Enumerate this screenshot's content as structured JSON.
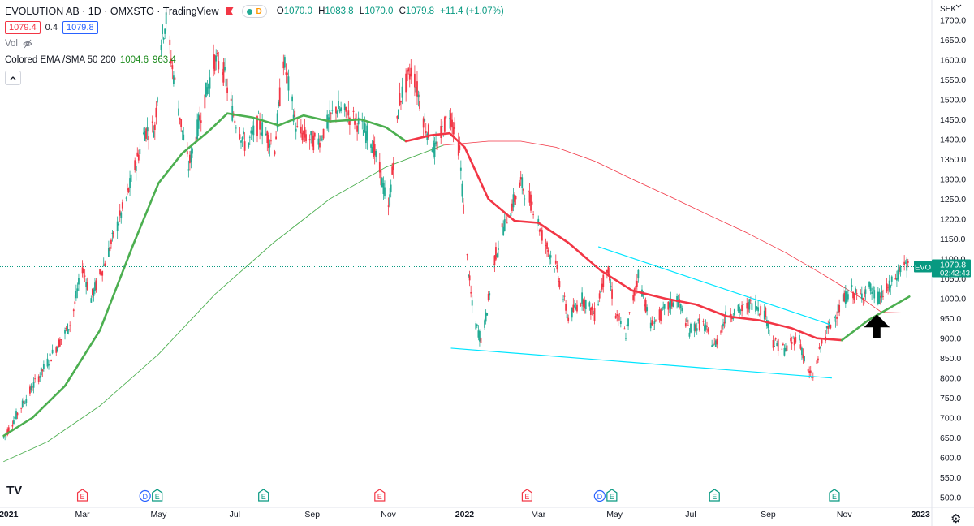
{
  "header": {
    "title": "EVOLUTION AB · 1D · OMXSTO · TradingView",
    "status_letter": "D",
    "ohlc": {
      "o_label": "O",
      "o": "1070.0",
      "h_label": "H",
      "h": "1083.8",
      "l_label": "L",
      "l": "1070.0",
      "c_label": "C",
      "c": "1079.8",
      "change": "+11.4 (+1.07%)"
    },
    "bid": "1079.4",
    "spread": "0.4",
    "ask": "1079.8",
    "volume_label": "Vol",
    "indicator": {
      "label": "Colored EMA /SMA 50 200",
      "ema": "1004.6",
      "sma": "963.4"
    }
  },
  "colors": {
    "up": "#22ab94",
    "down": "#f23645",
    "ema": "#f23645",
    "sma_short": "#4caf50",
    "sma_long": "#4caf50",
    "trendline": "#00e5ff",
    "price_line": "#089981",
    "arrow": "#000000"
  },
  "price_tag": {
    "symbol": "EVO",
    "price": "1079.8",
    "countdown": "02:42:43"
  },
  "logo": "TV",
  "settings_icon": "gear-icon",
  "chart_data": {
    "type": "candlestick",
    "y_axis": {
      "unit": "SEK",
      "min": 475,
      "max": 1750,
      "ticks": [
        500,
        550,
        600,
        650,
        700,
        750,
        800,
        850,
        900,
        950,
        1000,
        1050,
        1100,
        1150,
        1200,
        1250,
        1300,
        1350,
        1400,
        1450,
        1500,
        1550,
        1600,
        1650,
        1700
      ],
      "tick_labels": [
        "500.0",
        "550.0",
        "600.0",
        "650.0",
        "700.0",
        "750.0",
        "800.0",
        "850.0",
        "900.0",
        "950.0",
        "1000.0",
        "1050.0",
        "1100.0",
        "1150.0",
        "1200.0",
        "1250.0",
        "1300.0",
        "1350.0",
        "1400.0",
        "1450.0",
        "1500.0",
        "1550.0",
        "1600.0",
        "1650.0",
        "1700.0"
      ]
    },
    "x_axis": {
      "start": "2020-12-25",
      "end": "2023-01-10",
      "ticks": [
        {
          "date": "2021-01-01",
          "label": "2021",
          "bold": true
        },
        {
          "date": "2021-03-01",
          "label": "Mar"
        },
        {
          "date": "2021-05-01",
          "label": "May"
        },
        {
          "date": "2021-07-01",
          "label": "Jul"
        },
        {
          "date": "2021-09-01",
          "label": "Sep"
        },
        {
          "date": "2021-11-01",
          "label": "Nov"
        },
        {
          "date": "2022-01-01",
          "label": "2022",
          "bold": true
        },
        {
          "date": "2022-03-01",
          "label": "Mar"
        },
        {
          "date": "2022-05-01",
          "label": "May"
        },
        {
          "date": "2022-07-01",
          "label": "Jul"
        },
        {
          "date": "2022-09-01",
          "label": "Sep"
        },
        {
          "date": "2022-11-01",
          "label": "Nov"
        },
        {
          "date": "2023-01-01",
          "label": "2023",
          "bold": true
        }
      ]
    },
    "price_path": [
      [
        "2020-12-28",
        650
      ],
      [
        "2021-01-15",
        750
      ],
      [
        "2021-02-01",
        840
      ],
      [
        "2021-02-20",
        940
      ],
      [
        "2021-03-01",
        1080
      ],
      [
        "2021-03-08",
        1000
      ],
      [
        "2021-03-20",
        1100
      ],
      [
        "2021-04-05",
        1250
      ],
      [
        "2021-04-20",
        1420
      ],
      [
        "2021-04-28",
        1430
      ],
      [
        "2021-05-03",
        1650
      ],
      [
        "2021-05-07",
        1700
      ],
      [
        "2021-05-12",
        1580
      ],
      [
        "2021-05-20",
        1420
      ],
      [
        "2021-05-25",
        1330
      ],
      [
        "2021-06-05",
        1480
      ],
      [
        "2021-06-15",
        1600
      ],
      [
        "2021-06-22",
        1570
      ],
      [
        "2021-06-29",
        1470
      ],
      [
        "2021-07-10",
        1380
      ],
      [
        "2021-07-20",
        1440
      ],
      [
        "2021-08-02",
        1380
      ],
      [
        "2021-08-09",
        1600
      ],
      [
        "2021-08-20",
        1420
      ],
      [
        "2021-09-05",
        1390
      ],
      [
        "2021-09-20",
        1480
      ],
      [
        "2021-10-05",
        1450
      ],
      [
        "2021-10-18",
        1400
      ],
      [
        "2021-10-25",
        1320
      ],
      [
        "2021-11-01",
        1220
      ],
      [
        "2021-11-10",
        1500
      ],
      [
        "2021-11-20",
        1580
      ],
      [
        "2021-11-30",
        1440
      ],
      [
        "2021-12-08",
        1370
      ],
      [
        "2021-12-20",
        1470
      ],
      [
        "2021-12-28",
        1370
      ],
      [
        "2022-01-02",
        1130
      ],
      [
        "2022-01-08",
        950
      ],
      [
        "2022-01-15",
        890
      ],
      [
        "2022-01-25",
        1100
      ],
      [
        "2022-02-01",
        1180
      ],
      [
        "2022-02-15",
        1290
      ],
      [
        "2022-02-25",
        1230
      ],
      [
        "2022-03-05",
        1150
      ],
      [
        "2022-03-15",
        1080
      ],
      [
        "2022-03-25",
        950
      ],
      [
        "2022-04-05",
        1000
      ],
      [
        "2022-04-15",
        960
      ],
      [
        "2022-04-25",
        1080
      ],
      [
        "2022-05-02",
        960
      ],
      [
        "2022-05-10",
        910
      ],
      [
        "2022-05-20",
        1060
      ],
      [
        "2022-05-30",
        930
      ],
      [
        "2022-06-10",
        970
      ],
      [
        "2022-06-20",
        1000
      ],
      [
        "2022-06-30",
        920
      ],
      [
        "2022-07-10",
        940
      ],
      [
        "2022-07-20",
        880
      ],
      [
        "2022-07-30",
        960
      ],
      [
        "2022-08-10",
        970
      ],
      [
        "2022-08-20",
        990
      ],
      [
        "2022-08-30",
        960
      ],
      [
        "2022-09-05",
        890
      ],
      [
        "2022-09-15",
        870
      ],
      [
        "2022-09-25",
        910
      ],
      [
        "2022-10-02",
        820
      ],
      [
        "2022-10-07",
        800
      ],
      [
        "2022-10-14",
        890
      ],
      [
        "2022-10-22",
        940
      ],
      [
        "2022-10-30",
        990
      ],
      [
        "2022-11-06",
        1020
      ],
      [
        "2022-11-13",
        1000
      ],
      [
        "2022-11-20",
        1030
      ],
      [
        "2022-11-28",
        1000
      ],
      [
        "2022-12-05",
        1020
      ],
      [
        "2022-12-12",
        1050
      ],
      [
        "2022-12-18",
        1090
      ],
      [
        "2022-12-23",
        1079.8
      ]
    ],
    "ema_50": [
      [
        "2020-12-28",
        655
      ],
      [
        "2021-01-20",
        700
      ],
      [
        "2021-02-15",
        780
      ],
      [
        "2021-03-15",
        920
      ],
      [
        "2021-04-10",
        1130
      ],
      [
        "2021-05-01",
        1290
      ],
      [
        "2021-05-20",
        1365
      ],
      [
        "2021-06-10",
        1420
      ],
      [
        "2021-06-25",
        1465
      ],
      [
        "2021-07-15",
        1455
      ],
      [
        "2021-08-05",
        1435
      ],
      [
        "2021-08-25",
        1460
      ],
      [
        "2021-09-15",
        1445
      ],
      [
        "2021-10-10",
        1450
      ],
      [
        "2021-10-30",
        1430
      ],
      [
        "2021-11-15",
        1395
      ],
      [
        "2021-12-05",
        1410
      ],
      [
        "2021-12-20",
        1415
      ],
      [
        "2022-01-01",
        1380
      ],
      [
        "2022-01-20",
        1250
      ],
      [
        "2022-02-10",
        1195
      ],
      [
        "2022-03-01",
        1190
      ],
      [
        "2022-03-25",
        1140
      ],
      [
        "2022-04-20",
        1070
      ],
      [
        "2022-05-15",
        1020
      ],
      [
        "2022-06-10",
        1000
      ],
      [
        "2022-07-05",
        985
      ],
      [
        "2022-07-30",
        955
      ],
      [
        "2022-08-25",
        945
      ],
      [
        "2022-09-20",
        925
      ],
      [
        "2022-10-10",
        900
      ],
      [
        "2022-10-30",
        895
      ],
      [
        "2022-11-20",
        945
      ],
      [
        "2022-12-23",
        1004.6
      ]
    ],
    "sma_200": [
      [
        "2020-12-28",
        590
      ],
      [
        "2021-02-01",
        640
      ],
      [
        "2021-03-15",
        730
      ],
      [
        "2021-05-01",
        860
      ],
      [
        "2021-06-15",
        1010
      ],
      [
        "2021-08-01",
        1140
      ],
      [
        "2021-09-15",
        1250
      ],
      [
        "2021-10-30",
        1330
      ],
      [
        "2021-12-15",
        1385
      ],
      [
        "2022-01-20",
        1395
      ],
      [
        "2022-02-15",
        1395
      ],
      [
        "2022-03-15",
        1380
      ],
      [
        "2022-04-15",
        1345
      ],
      [
        "2022-05-15",
        1300
      ],
      [
        "2022-06-15",
        1255
      ],
      [
        "2022-07-15",
        1210
      ],
      [
        "2022-08-15",
        1165
      ],
      [
        "2022-09-15",
        1115
      ],
      [
        "2022-10-15",
        1060
      ],
      [
        "2022-11-15",
        1000
      ],
      [
        "2022-12-01",
        965
      ],
      [
        "2022-12-23",
        963.4
      ]
    ],
    "trendlines": [
      {
        "from": [
          "2021-12-21",
          875
        ],
        "to": [
          "2022-10-22",
          800
        ]
      },
      {
        "from": [
          "2022-04-18",
          1130
        ],
        "to": [
          "2022-10-20",
          935
        ]
      }
    ],
    "arrow": {
      "date": "2022-11-27",
      "from": 900,
      "to": 960
    },
    "current_price": 1079.8,
    "events": [
      {
        "date": "2021-03-01",
        "marks": [
          "E"
        ]
      },
      {
        "date": "2021-04-25",
        "marks": [
          "D",
          "E"
        ]
      },
      {
        "date": "2021-07-24",
        "marks": [
          "E"
        ]
      },
      {
        "date": "2021-10-25",
        "marks": [
          "E"
        ]
      },
      {
        "date": "2022-02-20",
        "marks": [
          "E"
        ]
      },
      {
        "date": "2022-04-24",
        "marks": [
          "D",
          "E"
        ]
      },
      {
        "date": "2022-07-20",
        "marks": [
          "E"
        ]
      },
      {
        "date": "2022-10-24",
        "marks": [
          "E"
        ]
      }
    ]
  }
}
